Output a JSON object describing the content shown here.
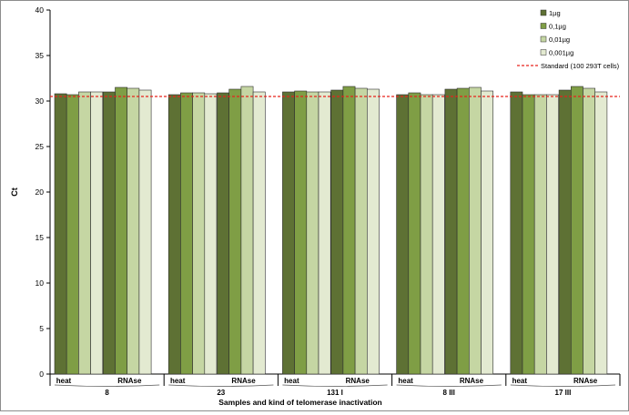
{
  "chart_data": {
    "type": "bar",
    "title": "",
    "ylabel": "Ct",
    "xlabel": "Samples and kind of telomerase inactivation",
    "ylim": [
      0,
      40
    ],
    "yticks": [
      0,
      5,
      10,
      15,
      20,
      25,
      30,
      35,
      40
    ],
    "grid": false,
    "legend_position": "top-right",
    "samples": [
      "8",
      "23",
      "131 I",
      "8 III",
      "17 III"
    ],
    "treatments": [
      "heat",
      "RNAse"
    ],
    "series": [
      {
        "name": "1µg",
        "color": "#5e7134",
        "heat": [
          30.8,
          30.7,
          31.0,
          30.7,
          31.0
        ],
        "rnase": [
          31.0,
          30.9,
          31.2,
          31.3,
          31.2
        ]
      },
      {
        "name": "0,1µg",
        "color": "#7f9e45",
        "heat": [
          30.7,
          30.9,
          31.1,
          30.9,
          30.7
        ],
        "rnase": [
          31.5,
          31.3,
          31.6,
          31.4,
          31.6
        ]
      },
      {
        "name": "0,01µg",
        "color": "#c5d6a3",
        "heat": [
          31.0,
          30.9,
          31.0,
          30.7,
          30.7
        ],
        "rnase": [
          31.4,
          31.6,
          31.4,
          31.5,
          31.4
        ]
      },
      {
        "name": "0,001µg",
        "color": "#e3ead1",
        "heat": [
          31.0,
          30.8,
          31.0,
          30.7,
          30.7
        ],
        "rnase": [
          31.2,
          31.0,
          31.3,
          31.1,
          31.0
        ]
      }
    ],
    "reference_line": {
      "name": "Standard (100 293T cells)",
      "value": 30.5,
      "color": "#e8231c",
      "style": "dashed"
    }
  }
}
